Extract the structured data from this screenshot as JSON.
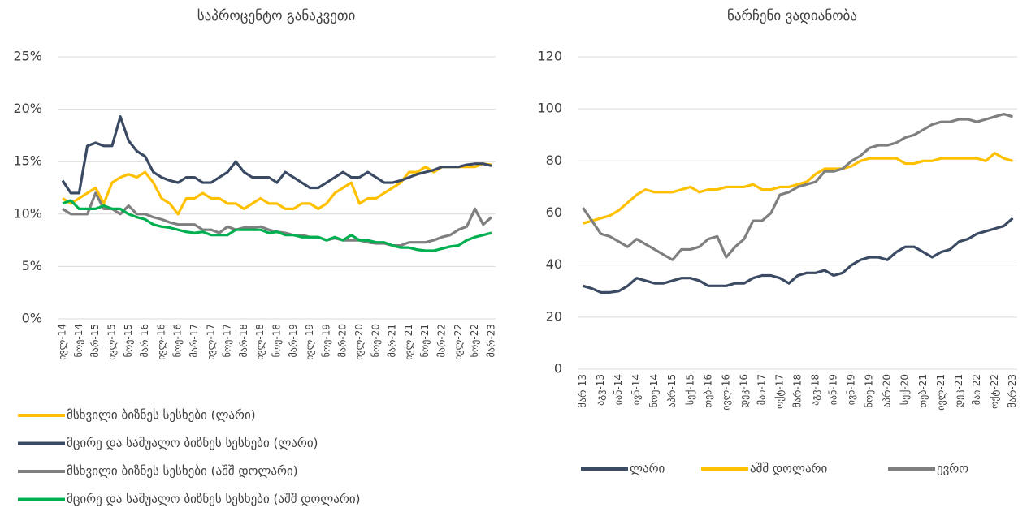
{
  "chart_data": [
    {
      "type": "line",
      "title": "საპროცენტო განაკვეთი",
      "categories": [
        "ივლ-14",
        null,
        "ნოე-14",
        null,
        "მარ-15",
        null,
        "ივლ-15",
        null,
        "ნოე-15",
        null,
        "მარ-16",
        null,
        "ივლ-16",
        null,
        "ნოე-16",
        null,
        "მარ-17",
        null,
        "ივლ-17",
        null,
        "ნოე-17",
        null,
        "მარ-18",
        null,
        "ივლ-18",
        null,
        "ნოე-18",
        null,
        "მარ-19",
        null,
        "ივლ-19",
        null,
        "ნოე-19",
        null,
        "მარ-20",
        null,
        "ივლ-20",
        null,
        "ნოე-20",
        null,
        "მარ-21",
        null,
        "ივლ-21",
        null,
        "ნოე-21",
        null,
        "მარ-22",
        null,
        "ივლ-22",
        null,
        "ნოე-22",
        null,
        "მარ-23"
      ],
      "series": [
        {
          "name": "მსხვილი ბიზნეს სესხები (ლარი)",
          "color": "#ffc000",
          "values": [
            11.5,
            11,
            11.5,
            12,
            12.5,
            11,
            13,
            13.5,
            13.8,
            13.5,
            14,
            13,
            11.5,
            11,
            10,
            11.5,
            11.5,
            12,
            11.5,
            11.5,
            11,
            11,
            10.5,
            11,
            11.5,
            11,
            11,
            10.5,
            10.5,
            11,
            11,
            10.5,
            11,
            12,
            12.5,
            13,
            11,
            11.5,
            11.5,
            12,
            12.5,
            13,
            14,
            14,
            14.5,
            14,
            14.5,
            14.5,
            14.5,
            14.5,
            14.5,
            14.8,
            14.7
          ]
        },
        {
          "name": "მცირე და საშუალო ბიზნეს სესხები (ლარი)",
          "color": "#3b4a63",
          "values": [
            13.2,
            12,
            12,
            16.5,
            16.8,
            16.5,
            16.5,
            19.3,
            17,
            16,
            15.5,
            14,
            13.5,
            13.2,
            13,
            13.5,
            13.5,
            13,
            13,
            13.5,
            14,
            15,
            14,
            13.5,
            13.5,
            13.5,
            13,
            14,
            13.5,
            13,
            12.5,
            12.5,
            13,
            13.5,
            14,
            13.5,
            13.5,
            14,
            13.5,
            13,
            13,
            13.2,
            13.5,
            13.8,
            14,
            14.2,
            14.5,
            14.5,
            14.5,
            14.7,
            14.8,
            14.8,
            14.6
          ]
        },
        {
          "name": "მსხვილი ბიზნეს სესხები (აშშ დოლარი)",
          "color": "#7f7f7f",
          "values": [
            10.5,
            10,
            10,
            10,
            12,
            10.5,
            10.5,
            10,
            10.8,
            10,
            10,
            9.7,
            9.5,
            9.2,
            9,
            9,
            9,
            8.5,
            8.5,
            8.2,
            8.8,
            8.5,
            8.7,
            8.7,
            8.8,
            8.5,
            8.3,
            8.2,
            8,
            8,
            7.8,
            7.8,
            7.5,
            7.7,
            7.5,
            7.5,
            7.5,
            7.3,
            7.2,
            7.2,
            7,
            7,
            7.3,
            7.3,
            7.3,
            7.5,
            7.8,
            8,
            8.5,
            8.8,
            10.5,
            9,
            9.7
          ]
        },
        {
          "name": "მცირე და საშუალო ბიზნეს სესხები (აშშ დოლარი)",
          "color": "#00b050",
          "values": [
            11,
            11.3,
            10.5,
            10.5,
            10.5,
            10.8,
            10.5,
            10.5,
            10,
            9.7,
            9.5,
            9,
            8.8,
            8.7,
            8.5,
            8.3,
            8.2,
            8.3,
            8,
            8,
            8,
            8.5,
            8.5,
            8.5,
            8.5,
            8.2,
            8.3,
            8,
            8,
            7.8,
            7.8,
            7.8,
            7.5,
            7.8,
            7.5,
            8,
            7.5,
            7.5,
            7.3,
            7.3,
            7,
            6.8,
            6.8,
            6.6,
            6.5,
            6.5,
            6.7,
            6.9,
            7,
            7.5,
            7.8,
            8,
            8.2
          ]
        }
      ],
      "ylim": [
        0,
        25
      ],
      "yticks": [
        {
          "value": 0,
          "label": "0%"
        },
        {
          "value": 5,
          "label": "5%"
        },
        {
          "value": 10,
          "label": "10%"
        },
        {
          "value": 15,
          "label": "15%"
        },
        {
          "value": 20,
          "label": "20%"
        },
        {
          "value": 25,
          "label": "25%"
        }
      ],
      "grid": true,
      "legend": "bottom"
    },
    {
      "type": "line",
      "title": "ნარჩენი ვადიანობა",
      "categories": [
        "მარ-13",
        null,
        "აგვ-13",
        null,
        "იან-14",
        null,
        "ივნ-14",
        null,
        "ნოე-14",
        null,
        "აპრ-15",
        null,
        "სექ-15",
        null,
        "თებ-16",
        null,
        "ივლ-16",
        null,
        "დეკ-16",
        null,
        "მაი-17",
        null,
        "ოქტ-17",
        null,
        "მარ-18",
        null,
        "აგვ-18",
        null,
        "იან-19",
        null,
        "ივნ-19",
        null,
        "ნოე-19",
        null,
        "აპრ-20",
        null,
        "სექ-20",
        null,
        "თებ-21",
        null,
        "ივლ-21",
        null,
        "დეკ-21",
        null,
        "მაი-22",
        null,
        "ოქტ-22",
        null,
        "მარ-23"
      ],
      "series": [
        {
          "name": "ლარი",
          "color": "#3b4a63",
          "values": [
            32,
            31,
            29.5,
            29.5,
            30,
            32,
            35,
            34,
            33,
            33,
            34,
            35,
            35,
            34,
            32,
            32,
            32,
            33,
            33,
            35,
            36,
            36,
            35,
            33,
            36,
            37,
            37,
            38,
            36,
            37,
            40,
            42,
            43,
            43,
            42,
            45,
            47,
            47,
            45,
            43,
            45,
            46,
            49,
            50,
            52,
            53,
            54,
            55,
            58
          ]
        },
        {
          "name": "აშშ დოლარი",
          "color": "#ffc000",
          "values": [
            56,
            57,
            58,
            59,
            61,
            64,
            67,
            69,
            68,
            68,
            68,
            69,
            70,
            68,
            69,
            69,
            70,
            70,
            70,
            71,
            69,
            69,
            70,
            70,
            71,
            72,
            75,
            77,
            77,
            77,
            78,
            80,
            81,
            81,
            81,
            81,
            79,
            79,
            80,
            80,
            81,
            81,
            81,
            81,
            81,
            80,
            83,
            81,
            80
          ]
        },
        {
          "name": "ევრო",
          "color": "#7f7f7f",
          "values": [
            62,
            57,
            52,
            51,
            49,
            47,
            50,
            48,
            46,
            44,
            42,
            46,
            46,
            47,
            50,
            51,
            43,
            47,
            50,
            57,
            57,
            60,
            67,
            68,
            70,
            71,
            72,
            76,
            76,
            77,
            80,
            82,
            85,
            86,
            86,
            87,
            89,
            90,
            92,
            94,
            95,
            95,
            96,
            96,
            95,
            96,
            97,
            98,
            97
          ]
        }
      ],
      "ylim": [
        0,
        120
      ],
      "yticks": [
        0,
        20,
        40,
        60,
        80,
        100,
        120
      ],
      "grid": true,
      "legend": "bottom"
    }
  ]
}
